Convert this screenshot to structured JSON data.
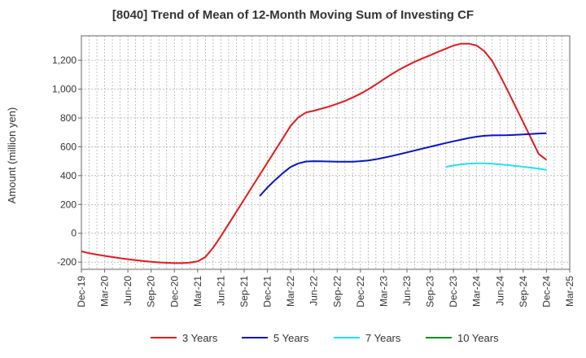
{
  "chart_data": {
    "type": "line",
    "title": "[8040]  Trend of Mean of 12-Month Moving Sum of Investing CF",
    "ylabel": "Amount (million yen)",
    "xlabel": "",
    "ylim": [
      -250,
      1370
    ],
    "yticks": [
      -200,
      0,
      200,
      400,
      600,
      800,
      1000,
      1200
    ],
    "ytick_labels": [
      "-200",
      "0",
      "200",
      "400",
      "600",
      "800",
      "1,000",
      "1,200"
    ],
    "xlim": [
      "2019-12",
      "2025-03"
    ],
    "xtick_labels": [
      "Dec-19",
      "Mar-20",
      "Jun-20",
      "Sep-20",
      "Dec-20",
      "Mar-21",
      "Jun-21",
      "Sep-21",
      "Dec-21",
      "Mar-22",
      "Jun-22",
      "Sep-22",
      "Dec-22",
      "Mar-23",
      "Jun-23",
      "Sep-23",
      "Dec-23",
      "Mar-24",
      "Jun-24",
      "Sep-24",
      "Dec-24",
      "Mar-25"
    ],
    "grid": true,
    "legend_position": "bottom",
    "series": [
      {
        "name": "3 Years",
        "color": "#e31a1c",
        "points": [
          [
            "2019-12",
            -125
          ],
          [
            "2020-01",
            -138
          ],
          [
            "2020-02",
            -148
          ],
          [
            "2020-03",
            -157
          ],
          [
            "2020-04",
            -165
          ],
          [
            "2020-05",
            -173
          ],
          [
            "2020-06",
            -180
          ],
          [
            "2020-07",
            -187
          ],
          [
            "2020-08",
            -193
          ],
          [
            "2020-09",
            -198
          ],
          [
            "2020-10",
            -202
          ],
          [
            "2020-11",
            -205
          ],
          [
            "2020-12",
            -207
          ],
          [
            "2021-01",
            -207
          ],
          [
            "2021-02",
            -203
          ],
          [
            "2021-03",
            -195
          ],
          [
            "2021-04",
            -165
          ],
          [
            "2021-05",
            -100
          ],
          [
            "2021-06",
            -20
          ],
          [
            "2021-07",
            65
          ],
          [
            "2021-08",
            150
          ],
          [
            "2021-09",
            235
          ],
          [
            "2021-10",
            320
          ],
          [
            "2021-11",
            405
          ],
          [
            "2021-12",
            490
          ],
          [
            "2022-01",
            575
          ],
          [
            "2022-02",
            660
          ],
          [
            "2022-03",
            745
          ],
          [
            "2022-04",
            805
          ],
          [
            "2022-05",
            838
          ],
          [
            "2022-06",
            850
          ],
          [
            "2022-07",
            865
          ],
          [
            "2022-08",
            880
          ],
          [
            "2022-09",
            898
          ],
          [
            "2022-10",
            918
          ],
          [
            "2022-11",
            942
          ],
          [
            "2022-12",
            968
          ],
          [
            "2023-01",
            998
          ],
          [
            "2023-02",
            1032
          ],
          [
            "2023-03",
            1068
          ],
          [
            "2023-04",
            1103
          ],
          [
            "2023-05",
            1135
          ],
          [
            "2023-06",
            1163
          ],
          [
            "2023-07",
            1190
          ],
          [
            "2023-08",
            1213
          ],
          [
            "2023-09",
            1235
          ],
          [
            "2023-10",
            1258
          ],
          [
            "2023-11",
            1280
          ],
          [
            "2023-12",
            1302
          ],
          [
            "2024-01",
            1315
          ],
          [
            "2024-02",
            1315
          ],
          [
            "2024-03",
            1303
          ],
          [
            "2024-04",
            1263
          ],
          [
            "2024-05",
            1195
          ],
          [
            "2024-06",
            1095
          ],
          [
            "2024-07",
            990
          ],
          [
            "2024-08",
            880
          ],
          [
            "2024-09",
            770
          ],
          [
            "2024-10",
            660
          ],
          [
            "2024-11",
            550
          ],
          [
            "2024-12",
            510
          ]
        ]
      },
      {
        "name": "5 Years",
        "color": "#0a14c8",
        "points": [
          [
            "2021-11",
            258
          ],
          [
            "2021-12",
            318
          ],
          [
            "2022-01",
            370
          ],
          [
            "2022-02",
            418
          ],
          [
            "2022-03",
            460
          ],
          [
            "2022-04",
            485
          ],
          [
            "2022-05",
            498
          ],
          [
            "2022-06",
            500
          ],
          [
            "2022-07",
            499
          ],
          [
            "2022-08",
            498
          ],
          [
            "2022-09",
            497
          ],
          [
            "2022-10",
            496
          ],
          [
            "2022-11",
            497
          ],
          [
            "2022-12",
            500
          ],
          [
            "2023-01",
            505
          ],
          [
            "2023-02",
            513
          ],
          [
            "2023-03",
            524
          ],
          [
            "2023-04",
            536
          ],
          [
            "2023-05",
            548
          ],
          [
            "2023-06",
            561
          ],
          [
            "2023-07",
            574
          ],
          [
            "2023-08",
            587
          ],
          [
            "2023-09",
            600
          ],
          [
            "2023-10",
            613
          ],
          [
            "2023-11",
            626
          ],
          [
            "2023-12",
            638
          ],
          [
            "2024-01",
            650
          ],
          [
            "2024-02",
            661
          ],
          [
            "2024-03",
            670
          ],
          [
            "2024-04",
            676
          ],
          [
            "2024-05",
            679
          ],
          [
            "2024-06",
            680
          ],
          [
            "2024-07",
            681
          ],
          [
            "2024-08",
            683
          ],
          [
            "2024-09",
            686
          ],
          [
            "2024-10",
            689
          ],
          [
            "2024-11",
            692
          ],
          [
            "2024-12",
            694
          ]
        ]
      },
      {
        "name": "7 Years",
        "color": "#22e0f0",
        "points": [
          [
            "2023-11",
            460
          ],
          [
            "2023-12",
            470
          ],
          [
            "2024-01",
            478
          ],
          [
            "2024-02",
            483
          ],
          [
            "2024-03",
            485
          ],
          [
            "2024-04",
            485
          ],
          [
            "2024-05",
            482
          ],
          [
            "2024-06",
            478
          ],
          [
            "2024-07",
            473
          ],
          [
            "2024-08",
            467
          ],
          [
            "2024-09",
            461
          ],
          [
            "2024-10",
            455
          ],
          [
            "2024-11",
            448
          ],
          [
            "2024-12",
            440
          ]
        ]
      },
      {
        "name": "10 Years",
        "color": "#1a8a1a",
        "points": []
      }
    ]
  }
}
